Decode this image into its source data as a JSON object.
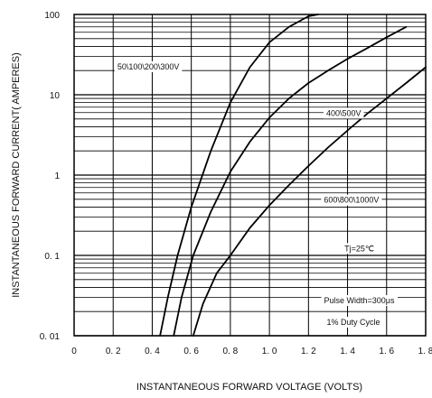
{
  "chart_data": {
    "type": "line",
    "title": "",
    "xlabel": "INSTANTANEOUS FORWARD VOLTAGE (VOLTS)",
    "ylabel": "INSTANTANEOUS FORWARD CURRENT( AMPERES)",
    "xlim": [
      0,
      1.8
    ],
    "ylim": [
      0.01,
      100
    ],
    "yscale": "log",
    "grid": true,
    "xticks": [
      0,
      0.2,
      0.4,
      0.6,
      0.8,
      1.0,
      1.2,
      1.4,
      1.6,
      1.8
    ],
    "xtick_labels": [
      "0",
      "0. 2",
      "0. 4",
      "0. 6",
      "0. 8",
      "1. 0",
      "1. 2",
      "1. 4",
      "1. 6",
      "1. 8"
    ],
    "yticks": [
      0.01,
      0.1,
      1,
      10,
      100
    ],
    "ytick_labels": [
      "0. 01",
      "0. 1",
      "1",
      "10",
      "100"
    ],
    "series": [
      {
        "name": "50\\100\\200\\300V",
        "x": [
          0.44,
          0.48,
          0.53,
          0.6,
          0.7,
          0.8,
          0.9,
          1.0,
          1.1,
          1.2,
          1.25
        ],
        "y": [
          0.01,
          0.03,
          0.1,
          0.4,
          2,
          8,
          22,
          45,
          70,
          95,
          100
        ]
      },
      {
        "name": "400\\500V",
        "x": [
          0.51,
          0.55,
          0.61,
          0.7,
          0.8,
          0.9,
          1.0,
          1.1,
          1.2,
          1.3,
          1.4,
          1.5,
          1.6,
          1.7
        ],
        "y": [
          0.01,
          0.03,
          0.1,
          0.35,
          1.1,
          2.6,
          5.2,
          9,
          14,
          20,
          28,
          38,
          52,
          70
        ]
      },
      {
        "name": "600\\800\\1000V",
        "x": [
          0.61,
          0.66,
          0.73,
          0.8,
          0.9,
          1.0,
          1.1,
          1.2,
          1.3,
          1.4,
          1.5,
          1.6,
          1.7,
          1.8
        ],
        "y": [
          0.01,
          0.025,
          0.06,
          0.1,
          0.22,
          0.42,
          0.75,
          1.3,
          2.2,
          3.6,
          5.8,
          9,
          14,
          22
        ]
      }
    ],
    "annotations": [
      {
        "text": "50\\100\\200\\300V",
        "x": 0.38,
        "y": 22
      },
      {
        "text": "400\\500V",
        "x": 1.38,
        "y": 5.8
      },
      {
        "text": "600\\800\\1000V",
        "x": 1.42,
        "y": 0.48
      },
      {
        "text": "Tj=25℃",
        "x": 1.46,
        "y": 0.12
      },
      {
        "text": "Pulse Width=300μs",
        "x": 1.46,
        "y": 0.027
      },
      {
        "text": "1% Duty Cycle",
        "x": 1.43,
        "y": 0.0145
      }
    ]
  }
}
